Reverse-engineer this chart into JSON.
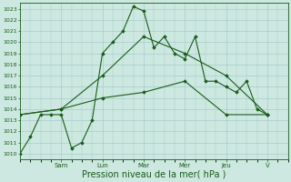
{
  "bg_color": "#cce8e0",
  "grid_color": "#aacccc",
  "line_color": "#1a5c1a",
  "marker_color": "#1a5c1a",
  "xlabel": "Pression niveau de la mer( hPa )",
  "xlabel_fontsize": 7,
  "ylim": [
    1009.5,
    1023.5
  ],
  "yticks": [
    1010,
    1011,
    1012,
    1013,
    1014,
    1015,
    1016,
    1017,
    1018,
    1019,
    1020,
    1021,
    1022,
    1023
  ],
  "day_labels": [
    "Sam",
    "Lun",
    "Mar",
    "Mer",
    "Jeu",
    "V"
  ],
  "day_positions": [
    24,
    48,
    72,
    96,
    120,
    144
  ],
  "xlim": [
    0,
    156
  ],
  "series1": {
    "x": [
      0,
      6,
      12,
      18,
      24,
      30,
      36,
      42,
      48,
      54,
      60,
      66,
      72,
      78,
      84,
      90,
      96,
      102,
      108,
      114,
      120,
      126,
      132,
      138,
      144
    ],
    "y": [
      1010,
      1011.5,
      1013.5,
      1013.5,
      1013.5,
      1010.5,
      1011.0,
      1013.0,
      1019.0,
      1020.0,
      1021.0,
      1023.2,
      1022.8,
      1019.5,
      1020.5,
      1019.0,
      1018.5,
      1020.5,
      1016.5,
      1016.5,
      1016.0,
      1015.5,
      1016.5,
      1014.0,
      1013.5
    ]
  },
  "series2": {
    "x": [
      0,
      24,
      48,
      72,
      96,
      120,
      144
    ],
    "y": [
      1013.5,
      1014.0,
      1017.0,
      1020.5,
      1019.0,
      1017.0,
      1013.5
    ]
  },
  "series3": {
    "x": [
      0,
      24,
      48,
      72,
      96,
      120,
      144
    ],
    "y": [
      1013.5,
      1014.0,
      1015.0,
      1015.5,
      1016.5,
      1013.5,
      1013.5
    ]
  }
}
